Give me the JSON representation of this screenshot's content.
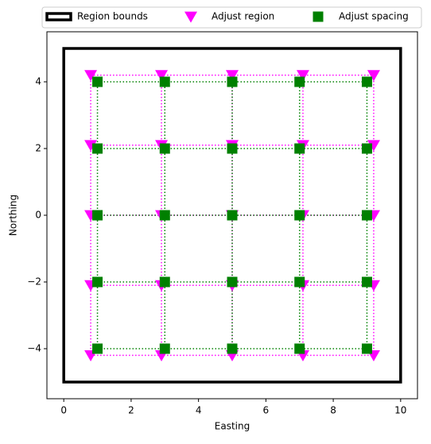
{
  "chart_data": {
    "type": "scatter",
    "xlabel": "Easting",
    "ylabel": "Northing",
    "xlim": [
      -0.5,
      10.5
    ],
    "ylim": [
      -5.5,
      5.5
    ],
    "xticks": [
      0,
      2,
      4,
      6,
      8,
      10
    ],
    "yticks": [
      {
        "value": -4,
        "label": "−4"
      },
      {
        "value": -2,
        "label": "−2"
      },
      0,
      2,
      4
    ],
    "region": {
      "name": "Region bounds",
      "color": "#000000",
      "x": [
        0,
        10
      ],
      "y": [
        -5,
        5
      ]
    },
    "series": [
      {
        "name": "Adjust region",
        "color": "#ff00ff",
        "marker": "triangle-down",
        "easting": [
          0.8,
          2.9,
          5,
          7.1,
          9.2
        ],
        "northing": [
          -4.2,
          -2.1,
          0,
          2.1,
          4.2
        ]
      },
      {
        "name": "Adjust spacing",
        "color": "#008000",
        "marker": "square",
        "easting": [
          1,
          3,
          5,
          7,
          9
        ],
        "northing": [
          -4,
          -2,
          0,
          2,
          4
        ]
      }
    ]
  }
}
